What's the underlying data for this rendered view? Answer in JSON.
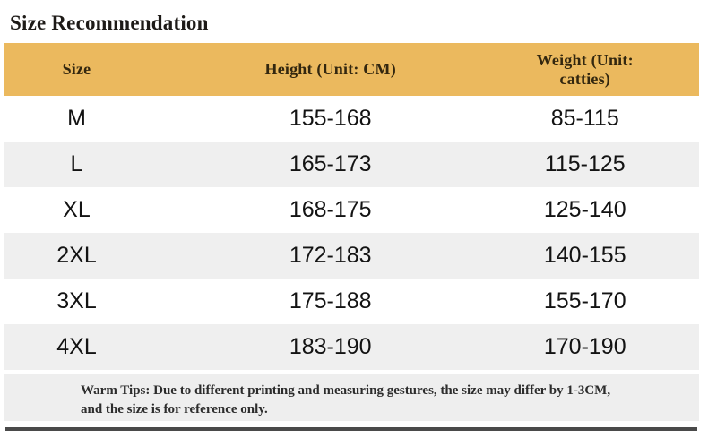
{
  "page": {
    "title": "Size Recommendation"
  },
  "chart_data": {
    "type": "table",
    "title": "Size Recommendation",
    "columns": [
      "Size",
      "Height (Unit: CM)",
      "Weight (Unit: catties)"
    ],
    "rows": [
      [
        "M",
        "155-168",
        "85-115"
      ],
      [
        "L",
        "165-173",
        "115-125"
      ],
      [
        "XL",
        "168-175",
        "125-140"
      ],
      [
        "2XL",
        "172-183",
        "140-155"
      ],
      [
        "3XL",
        "175-188",
        "155-170"
      ],
      [
        "4XL",
        "183-190",
        "170-190"
      ]
    ],
    "note_line1": "Warm Tips: Due to different printing and measuring gestures, the size may differ by 1-3CM,",
    "note_line2": "and the size is for reference only."
  },
  "colors": {
    "header_bg": "#EBB95E",
    "header_text": "#33270F",
    "row_alt_bg": "#EFEFEF",
    "body_text": "#131313",
    "tips_bg": "#EEEEEE",
    "divider": "#4A4A4A"
  }
}
